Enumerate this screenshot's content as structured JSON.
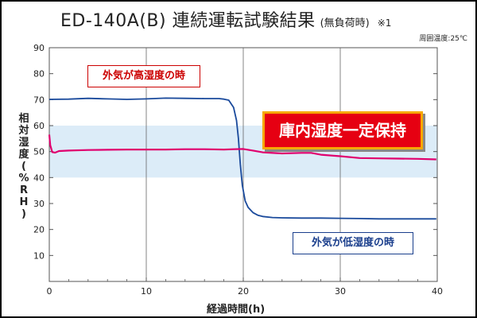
{
  "header": {
    "title": "ED-140A(B) 連続運転試験結果",
    "subtitle": "(無負荷時)",
    "note": "※1",
    "ambient": "周囲温度:25℃"
  },
  "colors": {
    "humidity_line": "#e0006e",
    "outside_line": "#1a4a9c",
    "band_fill": "#dcecf8",
    "badge_bg": "#e60012",
    "badge_border": "#f6a800"
  },
  "annotations": {
    "high": "外気が高湿度の時",
    "low": "外気が低湿度の時",
    "constant": "庫内湿度一定保持"
  },
  "chart_data": {
    "type": "line",
    "xlabel": "経過時間(h)",
    "ylabel": "相対湿度(%RH)",
    "xlim": [
      0,
      40
    ],
    "ylim": [
      0,
      90
    ],
    "xticks": [
      0,
      10,
      20,
      30,
      40
    ],
    "yticks": [
      10,
      20,
      30,
      40,
      50,
      60,
      70,
      80,
      90
    ],
    "band": [
      40,
      60
    ],
    "grid": "vertical",
    "series": [
      {
        "points": [
          [
            0,
            70.1
          ],
          [
            2,
            70.2
          ],
          [
            4,
            70.5
          ],
          [
            6,
            70.3
          ],
          [
            8,
            70.1
          ],
          [
            10,
            70.3
          ],
          [
            12,
            70.6
          ],
          [
            14,
            70.5
          ],
          [
            16,
            70.4
          ],
          [
            17.5,
            70.4
          ],
          [
            18,
            70.2
          ],
          [
            18.5,
            69.8
          ],
          [
            19,
            67.0
          ],
          [
            19.3,
            62.0
          ],
          [
            19.5,
            55.0
          ],
          [
            19.7,
            45.0
          ],
          [
            19.9,
            37.0
          ],
          [
            20.2,
            31.0
          ],
          [
            20.5,
            28.5
          ],
          [
            21,
            26.5
          ],
          [
            21.5,
            25.5
          ],
          [
            22,
            25.0
          ],
          [
            23,
            24.6
          ],
          [
            24,
            24.5
          ],
          [
            26,
            24.4
          ],
          [
            28,
            24.4
          ],
          [
            30,
            24.3
          ],
          [
            32,
            24.2
          ],
          [
            34,
            24.1
          ],
          [
            36,
            24.1
          ],
          [
            38,
            24.1
          ],
          [
            39.9,
            24.1
          ]
        ],
        "color": "#1a4a9c"
      },
      {
        "points": [
          [
            0,
            56.5
          ],
          [
            0.1,
            52.5
          ],
          [
            0.3,
            49.8
          ],
          [
            0.6,
            49.6
          ],
          [
            1,
            50.2
          ],
          [
            2,
            50.4
          ],
          [
            4,
            50.6
          ],
          [
            6,
            50.7
          ],
          [
            8,
            50.8
          ],
          [
            10,
            50.8
          ],
          [
            12,
            50.8
          ],
          [
            14,
            50.9
          ],
          [
            16,
            50.9
          ],
          [
            18,
            50.8
          ],
          [
            19,
            50.9
          ],
          [
            20,
            51.0
          ],
          [
            21,
            50.4
          ],
          [
            22,
            49.7
          ],
          [
            24,
            49.3
          ],
          [
            26,
            49.5
          ],
          [
            27,
            49.5
          ],
          [
            28,
            48.8
          ],
          [
            30,
            48.2
          ],
          [
            32,
            47.5
          ],
          [
            34,
            47.4
          ],
          [
            36,
            47.3
          ],
          [
            38,
            47.2
          ],
          [
            39.9,
            47.0
          ]
        ],
        "color": "#e0006e"
      }
    ]
  }
}
